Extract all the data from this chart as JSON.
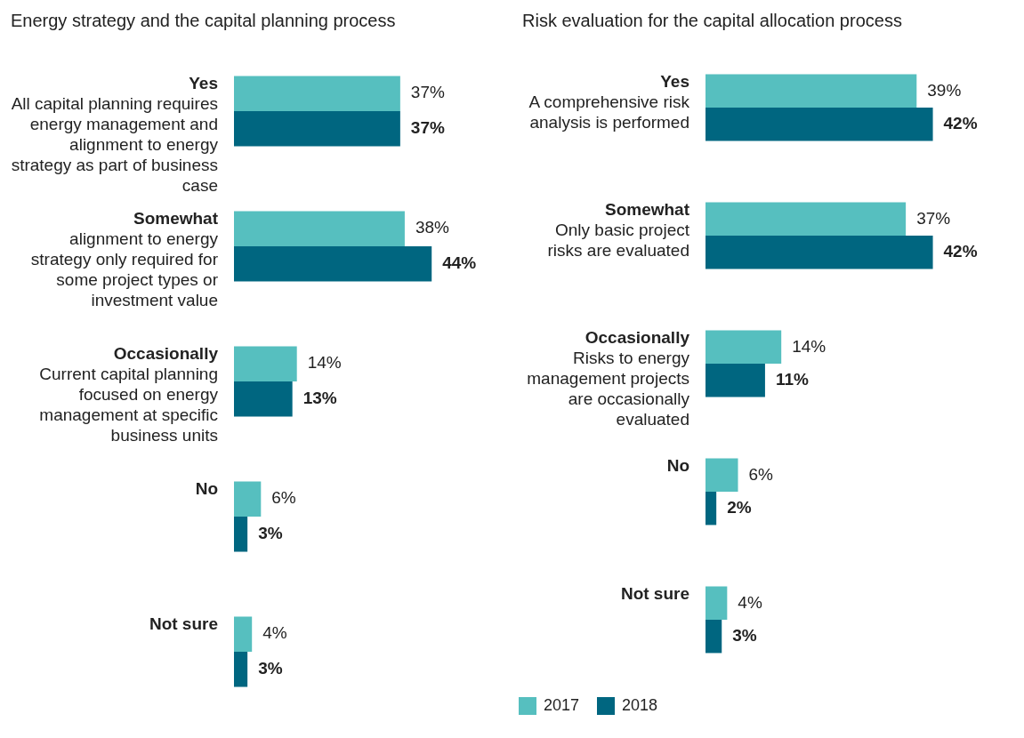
{
  "chart_data": [
    {
      "type": "bar",
      "orientation": "horizontal",
      "title": "Energy strategy and the capital planning process",
      "categories": [
        "Yes\nAll capital planning requires energy management and alignment to energy strategy as part of business case",
        "Somewhat\nalignment to energy strategy only required for some project types or investment value",
        "Occasionally\nCurrent capital planning focused on energy management at specific business units",
        "No",
        "Not sure"
      ],
      "legend": false,
      "series": [
        {
          "color": "#56bfbf",
          "values": [
            37,
            38,
            14,
            6,
            4
          ],
          "value_labels": [
            "37%",
            "38%",
            "14%",
            "6%",
            "4%"
          ]
        },
        {
          "color": "#006680",
          "values": [
            37,
            44,
            13,
            3,
            3
          ],
          "value_labels": [
            "37%",
            "44%",
            "13%",
            "3%",
            "3%"
          ]
        }
      ]
    },
    {
      "type": "bar",
      "orientation": "horizontal",
      "title": "Risk evaluation for the capital allocation process",
      "categories": [
        "Yes\nA comprehensive risk analysis is performed",
        "Somewhat\nOnly basic project risks are evaluated",
        "Occasionally\nRisks to energy management projects are occasionally evaluated",
        "No",
        "Not sure"
      ],
      "legend": "bottom",
      "series": [
        {
          "name": "2017",
          "color": "#56bfbf",
          "values": [
            39,
            37,
            14,
            6,
            4
          ],
          "value_labels": [
            "39%",
            "37%",
            "14%",
            "6%",
            "4%"
          ]
        },
        {
          "name": "2018",
          "color": "#006680",
          "values": [
            42,
            42,
            11,
            2,
            3
          ],
          "value_labels": [
            "42%",
            "42%",
            "11%",
            "2%",
            "3%"
          ]
        }
      ]
    }
  ]
}
